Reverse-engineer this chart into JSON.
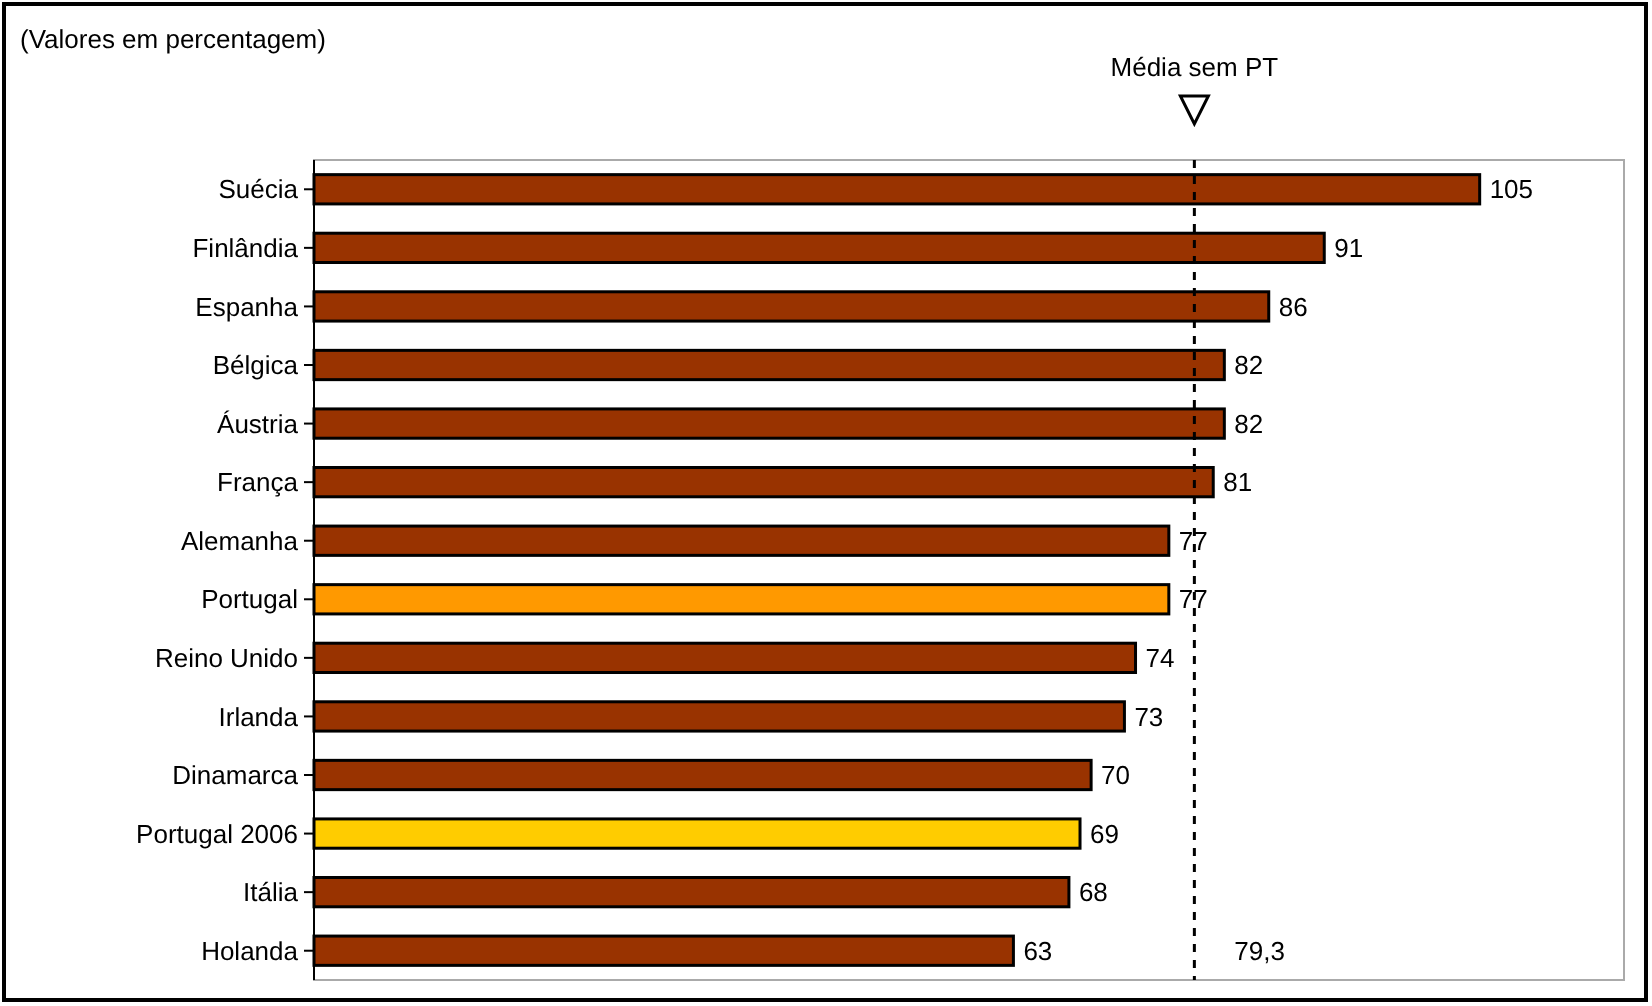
{
  "chart_data": {
    "type": "bar",
    "orientation": "horizontal",
    "title": "(Valores em percentagem)",
    "categories": [
      "Suécia",
      "Finlândia",
      "Espanha",
      "Bélgica",
      "Áustria",
      "França",
      "Alemanha",
      "Portugal",
      "Reino Unido",
      "Irlanda",
      "Dinamarca",
      "Portugal 2006",
      "Itália",
      "Holanda"
    ],
    "values": [
      105,
      91,
      86,
      82,
      82,
      81,
      77,
      77,
      74,
      73,
      70,
      69,
      68,
      63
    ],
    "colors": [
      "#993300",
      "#993300",
      "#993300",
      "#993300",
      "#993300",
      "#993300",
      "#993300",
      "#ff9900",
      "#993300",
      "#993300",
      "#993300",
      "#ffcc00",
      "#993300",
      "#993300"
    ],
    "xlim": [
      0,
      118
    ],
    "data_labels": true,
    "tick_labels": "y",
    "ref_lines": [
      {
        "axis": "x",
        "value": 79.3,
        "label": "Média sem PT",
        "line_style": "dashed",
        "color": "#000000"
      }
    ],
    "annotations": [
      {
        "text": "79,3",
        "x": 79.3,
        "y": "Holanda"
      }
    ]
  }
}
